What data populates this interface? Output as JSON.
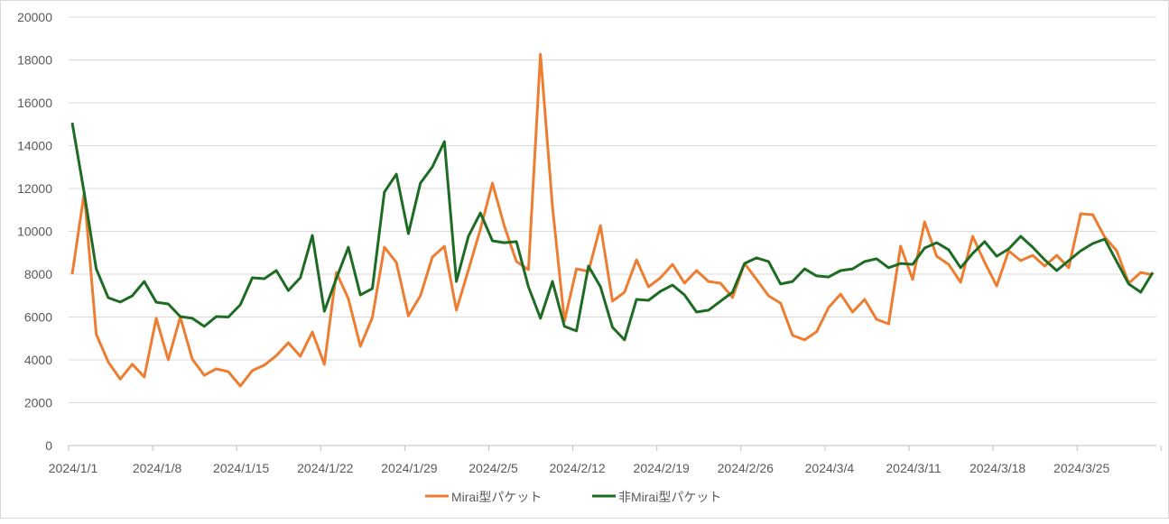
{
  "chart_data": {
    "type": "line",
    "title": "",
    "xlabel": "",
    "ylabel": "",
    "ylim": [
      0,
      20000
    ],
    "y_ticks": [
      0,
      2000,
      4000,
      6000,
      8000,
      10000,
      12000,
      14000,
      16000,
      18000,
      20000
    ],
    "grid": true,
    "legend_position": "bottom",
    "x_start": "2024/1/1",
    "x_end": "2024/3/31",
    "x_tick_labels": [
      "2024/1/1",
      "2024/1/8",
      "2024/1/15",
      "2024/1/22",
      "2024/1/29",
      "2024/2/5",
      "2024/2/12",
      "2024/2/19",
      "2024/2/26",
      "2024/3/4",
      "2024/3/11",
      "2024/3/18",
      "2024/3/25"
    ],
    "series": [
      {
        "name": "Mirai型パケット",
        "color": "#ED7D31",
        "values": [
          8000,
          11800,
          5200,
          3900,
          3100,
          3800,
          3200,
          5940,
          4000,
          6000,
          4040,
          3280,
          3580,
          3450,
          2780,
          3500,
          3750,
          4200,
          4800,
          4170,
          5300,
          3790,
          8080,
          6860,
          4630,
          5980,
          9260,
          8550,
          6060,
          6990,
          8800,
          9300,
          6320,
          8200,
          10100,
          12250,
          10230,
          8590,
          8210,
          18270,
          11160,
          5810,
          8250,
          8130,
          10270,
          6740,
          7160,
          8670,
          7410,
          7830,
          8460,
          7580,
          8170,
          7660,
          7580,
          6910,
          8500,
          7750,
          6990,
          6650,
          5140,
          4930,
          5310,
          6440,
          7070,
          6230,
          6820,
          5890,
          5680,
          9310,
          7750,
          10440,
          8840,
          8460,
          7620,
          9770,
          8550,
          7450,
          9090,
          8630,
          8880,
          8380,
          8880,
          8300,
          10820,
          10780,
          9730,
          9090,
          7580,
          8080,
          7960
        ]
      },
      {
        "name": "非Mirai型パケット",
        "color": "#1E6B24",
        "values": [
          15070,
          11790,
          8250,
          6900,
          6700,
          6990,
          7660,
          6690,
          6610,
          6020,
          5940,
          5560,
          6020,
          6000,
          6570,
          7830,
          7790,
          8170,
          7240,
          7830,
          9810,
          6270,
          7800,
          9260,
          7030,
          7330,
          11830,
          12670,
          9890,
          12250,
          13010,
          14190,
          7660,
          9770,
          10860,
          9560,
          9470,
          9520,
          7410,
          5940,
          7660,
          5560,
          5350,
          8380,
          7410,
          5520,
          4930,
          6820,
          6780,
          7200,
          7490,
          7030,
          6230,
          6320,
          6740,
          7160,
          8500,
          8760,
          8590,
          7540,
          7660,
          8250,
          7920,
          7870,
          8170,
          8250,
          8590,
          8720,
          8300,
          8500,
          8460,
          9220,
          9470,
          9140,
          8300,
          8970,
          9520,
          8840,
          9180,
          9770,
          9260,
          8670,
          8170,
          8630,
          9090,
          9430,
          9640,
          8590,
          7540,
          7160,
          8080
        ]
      }
    ]
  }
}
